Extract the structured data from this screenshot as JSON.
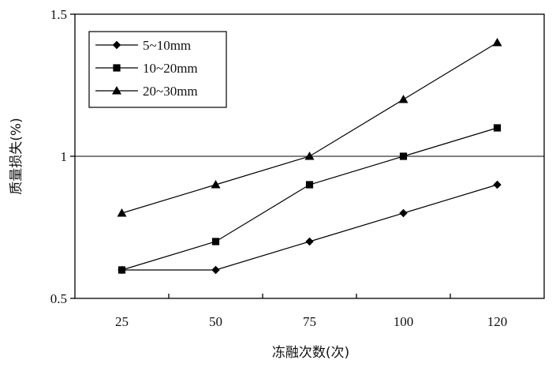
{
  "chart_data": {
    "type": "line",
    "title": "",
    "xlabel": "冻融次数(次)",
    "ylabel": "质量损失(%)",
    "categories": [
      "25",
      "50",
      "75",
      "100",
      "120"
    ],
    "ylim": [
      0.5,
      1.5
    ],
    "yticks": [
      0.5,
      1,
      1.5
    ],
    "ytick_labels": [
      "0.5",
      "1",
      "1.5"
    ],
    "reference_line_y": 1,
    "legend_position": "top-left",
    "grid": false,
    "series": [
      {
        "name": "5~10mm",
        "marker": "diamond",
        "values": [
          0.6,
          0.6,
          0.7,
          0.8,
          0.9
        ]
      },
      {
        "name": "10~20mm",
        "marker": "square",
        "values": [
          0.6,
          0.7,
          0.9,
          1.0,
          1.1
        ]
      },
      {
        "name": "20~30mm",
        "marker": "triangle",
        "values": [
          0.8,
          0.9,
          1.0,
          1.2,
          1.4
        ]
      }
    ]
  }
}
